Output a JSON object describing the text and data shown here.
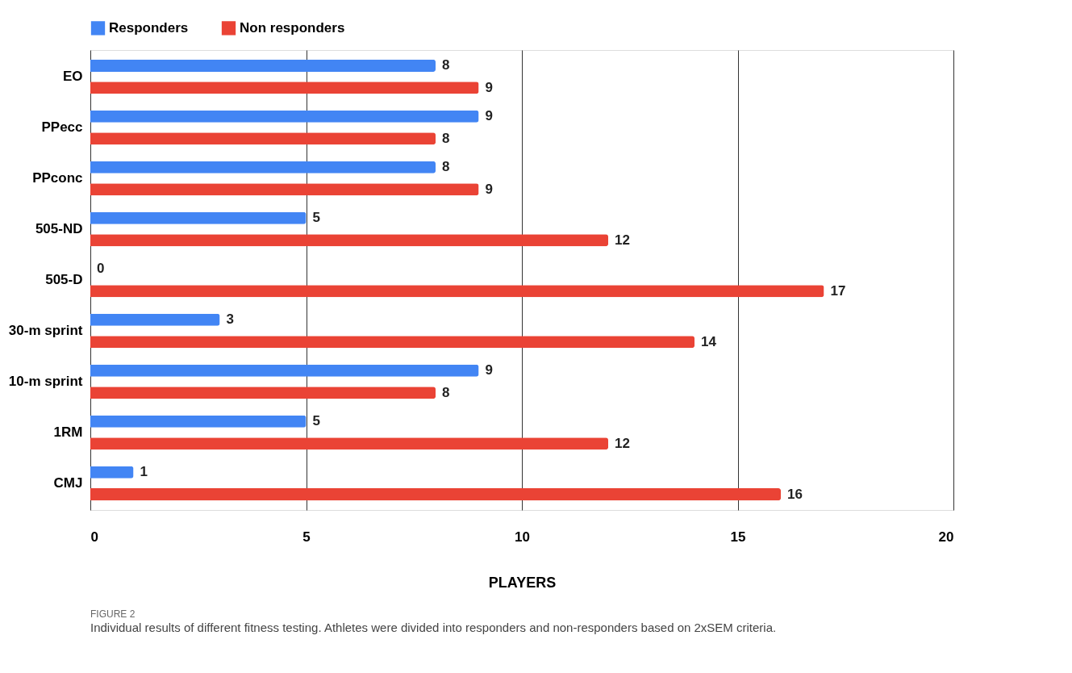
{
  "chart_data": {
    "type": "bar",
    "orientation": "horizontal",
    "categories": [
      "EO",
      "PPecc",
      "PPconc",
      "505-ND",
      "505-D",
      "30-m sprint",
      "10-m sprint",
      "1RM",
      "CMJ"
    ],
    "series": [
      {
        "name": "Responders",
        "color": "#4285f4",
        "values": [
          8,
          9,
          8,
          5,
          0,
          3,
          9,
          5,
          1
        ]
      },
      {
        "name": "Non responders",
        "color": "#ea4335",
        "values": [
          9,
          8,
          9,
          12,
          17,
          14,
          8,
          12,
          16
        ]
      }
    ],
    "xlim": [
      0,
      20
    ],
    "xticks": [
      0,
      5,
      10,
      15,
      20
    ],
    "xlabel": "PLAYERS",
    "grid": "x",
    "legend": "top",
    "data_labels": true,
    "annotations": [
      "FIGURE 2",
      "Individual results of different fitness testing. Athletes were divided into responders and non-responders based on 2xSEM criteria."
    ]
  }
}
